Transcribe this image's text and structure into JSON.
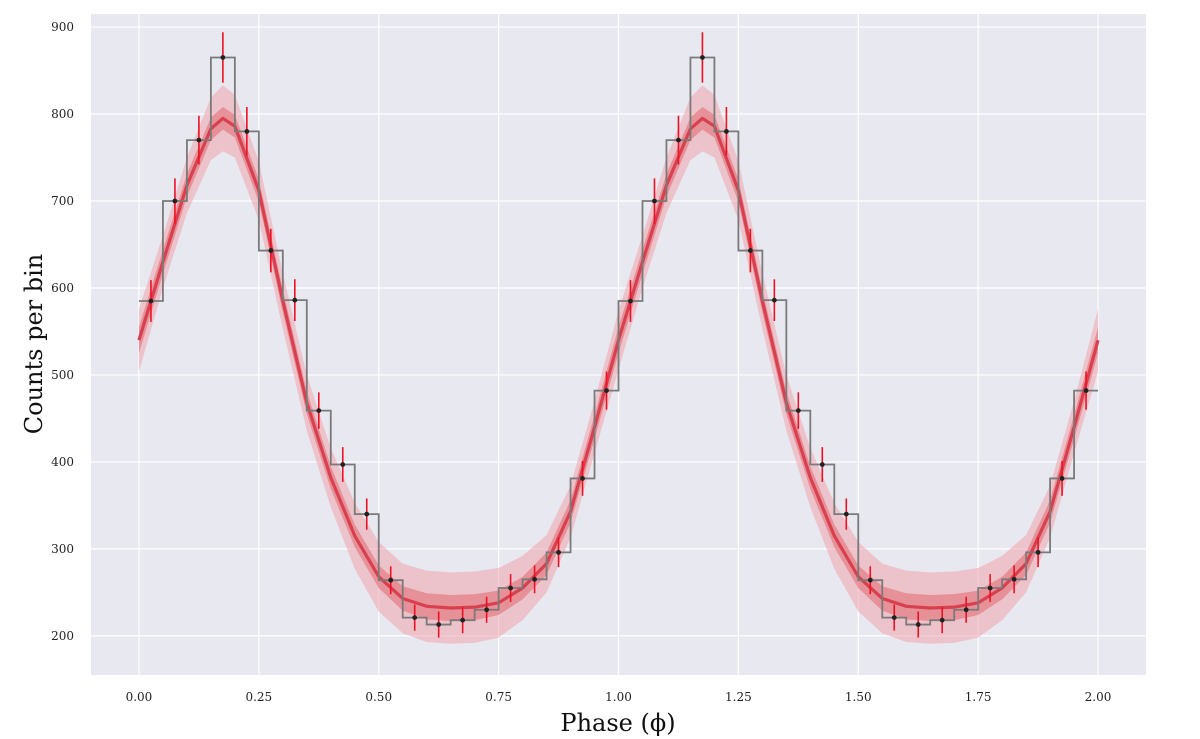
{
  "chart_data": {
    "type": "line",
    "title": "",
    "xlabel": "Phase (ϕ)",
    "ylabel": "Counts per bin",
    "xlim": [
      -0.1,
      2.1
    ],
    "ylim": [
      155,
      915
    ],
    "x_ticks": [
      "0.00",
      "0.25",
      "0.50",
      "0.75",
      "1.00",
      "1.25",
      "1.50",
      "1.75",
      "2.00"
    ],
    "x_tick_values": [
      0,
      0.25,
      0.5,
      0.75,
      1.0,
      1.25,
      1.5,
      1.75,
      2.0
    ],
    "y_ticks": [
      "200",
      "300",
      "400",
      "500",
      "600",
      "700",
      "800",
      "900"
    ],
    "y_tick_values": [
      200,
      300,
      400,
      500,
      600,
      700,
      800,
      900
    ],
    "grid": true,
    "background": "#e8e8f0",
    "colors": {
      "model": "#d9404f",
      "band_inner": "#e06670",
      "band_outer": "#f0a4ad",
      "histogram": "#7a7a7a",
      "points": "#222222",
      "errorbars": "#ee1122"
    },
    "histogram": {
      "bin_width": 0.05,
      "bin_starts": [
        0.0,
        0.05,
        0.1,
        0.15,
        0.2,
        0.25,
        0.3,
        0.35,
        0.4,
        0.45,
        0.5,
        0.55,
        0.6,
        0.65,
        0.7,
        0.75,
        0.8,
        0.85,
        0.9,
        0.95,
        1.0,
        1.05,
        1.1,
        1.15,
        1.2,
        1.25,
        1.3,
        1.35,
        1.4,
        1.45,
        1.5,
        1.55,
        1.6,
        1.65,
        1.7,
        1.75,
        1.8,
        1.85,
        1.9,
        1.95
      ],
      "counts": [
        585,
        700,
        770,
        865,
        780,
        643,
        586,
        459,
        397,
        340,
        264,
        221,
        213,
        218,
        230,
        255,
        265,
        296,
        381,
        482,
        585,
        700,
        770,
        865,
        780,
        643,
        586,
        459,
        397,
        340,
        264,
        221,
        213,
        218,
        230,
        255,
        265,
        296,
        381,
        482
      ]
    },
    "points": {
      "x": [
        0.025,
        0.075,
        0.125,
        0.175,
        0.225,
        0.275,
        0.325,
        0.375,
        0.425,
        0.475,
        0.525,
        0.575,
        0.625,
        0.675,
        0.725,
        0.775,
        0.825,
        0.875,
        0.925,
        0.975,
        1.025,
        1.075,
        1.125,
        1.175,
        1.225,
        1.275,
        1.325,
        1.375,
        1.425,
        1.475,
        1.525,
        1.575,
        1.625,
        1.675,
        1.725,
        1.775,
        1.825,
        1.875,
        1.925,
        1.975
      ],
      "y": [
        585,
        700,
        770,
        865,
        780,
        643,
        586,
        459,
        397,
        340,
        264,
        221,
        213,
        218,
        230,
        255,
        265,
        296,
        381,
        482,
        585,
        700,
        770,
        865,
        780,
        643,
        586,
        459,
        397,
        340,
        264,
        221,
        213,
        218,
        230,
        255,
        265,
        296,
        381,
        482
      ],
      "yerr": [
        24,
        26,
        28,
        29,
        28,
        25,
        24,
        21,
        20,
        18,
        16,
        15,
        15,
        15,
        15,
        16,
        16,
        17,
        20,
        22,
        24,
        26,
        28,
        29,
        28,
        25,
        24,
        21,
        20,
        18,
        16,
        15,
        15,
        15,
        15,
        16,
        16,
        17,
        20,
        22
      ]
    },
    "model": {
      "x": [
        0.0,
        0.05,
        0.1,
        0.15,
        0.175,
        0.2,
        0.25,
        0.3,
        0.35,
        0.4,
        0.45,
        0.5,
        0.55,
        0.6,
        0.65,
        0.7,
        0.75,
        0.8,
        0.85,
        0.9,
        0.95,
        1.0,
        1.05,
        1.1,
        1.15,
        1.175,
        1.2,
        1.25,
        1.3,
        1.35,
        1.4,
        1.45,
        1.5,
        1.55,
        1.6,
        1.65,
        1.7,
        1.75,
        1.8,
        1.85,
        1.9,
        1.95,
        2.0
      ],
      "y": [
        540,
        630,
        718,
        783,
        795,
        786,
        712,
        585,
        468,
        382,
        315,
        268,
        243,
        234,
        232,
        233,
        238,
        255,
        283,
        343,
        440,
        540,
        630,
        718,
        783,
        795,
        786,
        712,
        585,
        468,
        382,
        315,
        268,
        243,
        234,
        232,
        233,
        238,
        255,
        283,
        343,
        440,
        540
      ],
      "inner_halfwidth": [
        15,
        14,
        13,
        13,
        13,
        13,
        13,
        13,
        13,
        13,
        13,
        13,
        14,
        15,
        15,
        15,
        14,
        13,
        13,
        13,
        14,
        15,
        14,
        13,
        13,
        13,
        13,
        13,
        13,
        13,
        13,
        13,
        13,
        14,
        15,
        15,
        15,
        14,
        13,
        13,
        13,
        14,
        15
      ],
      "outer_halfwidth": [
        36,
        30,
        32,
        36,
        38,
        36,
        34,
        32,
        32,
        34,
        38,
        40,
        40,
        41,
        41,
        41,
        40,
        37,
        33,
        30,
        30,
        34,
        30,
        32,
        36,
        38,
        36,
        34,
        32,
        32,
        34,
        38,
        40,
        40,
        41,
        41,
        41,
        40,
        37,
        33,
        30,
        30,
        36
      ]
    }
  }
}
